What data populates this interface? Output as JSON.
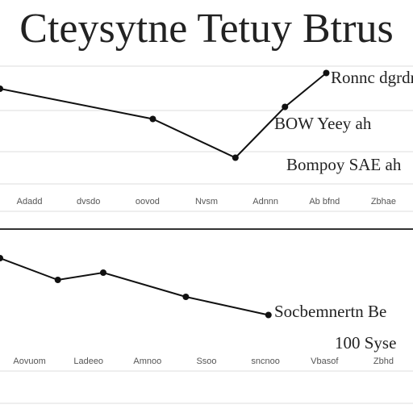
{
  "title": "Cteysytne Tetuy Btrus",
  "chart_data": [
    {
      "type": "line",
      "x": [
        0,
        37,
        57,
        69,
        79
      ],
      "values": [
        80,
        55,
        23,
        65,
        93
      ],
      "color": "#111",
      "xlim": [
        0,
        100
      ],
      "ylim": [
        0,
        100
      ],
      "x_labels": [
        "Adadd",
        "dvsdo",
        "oovod",
        "Nvsm",
        "Adnnn",
        "Ab bfnd",
        "Zbhae"
      ],
      "annotations": [
        "Ronnc dgrdma",
        "BOW Yeey ah",
        "Bompoy SAE ah"
      ]
    },
    {
      "type": "line",
      "x": [
        0,
        14,
        25,
        45,
        65
      ],
      "values": [
        80,
        62,
        68,
        48,
        33
      ],
      "color": "#111",
      "xlim": [
        0,
        100
      ],
      "ylim": [
        0,
        100
      ],
      "x_labels": [
        "Aovuom",
        "Ladeeo",
        "Amnoo",
        "Ssoo",
        "sncnoo",
        "Vbasof",
        "Zbhd"
      ],
      "annotations": [
        "Socbemnertn Be",
        "100 Syse"
      ]
    }
  ]
}
